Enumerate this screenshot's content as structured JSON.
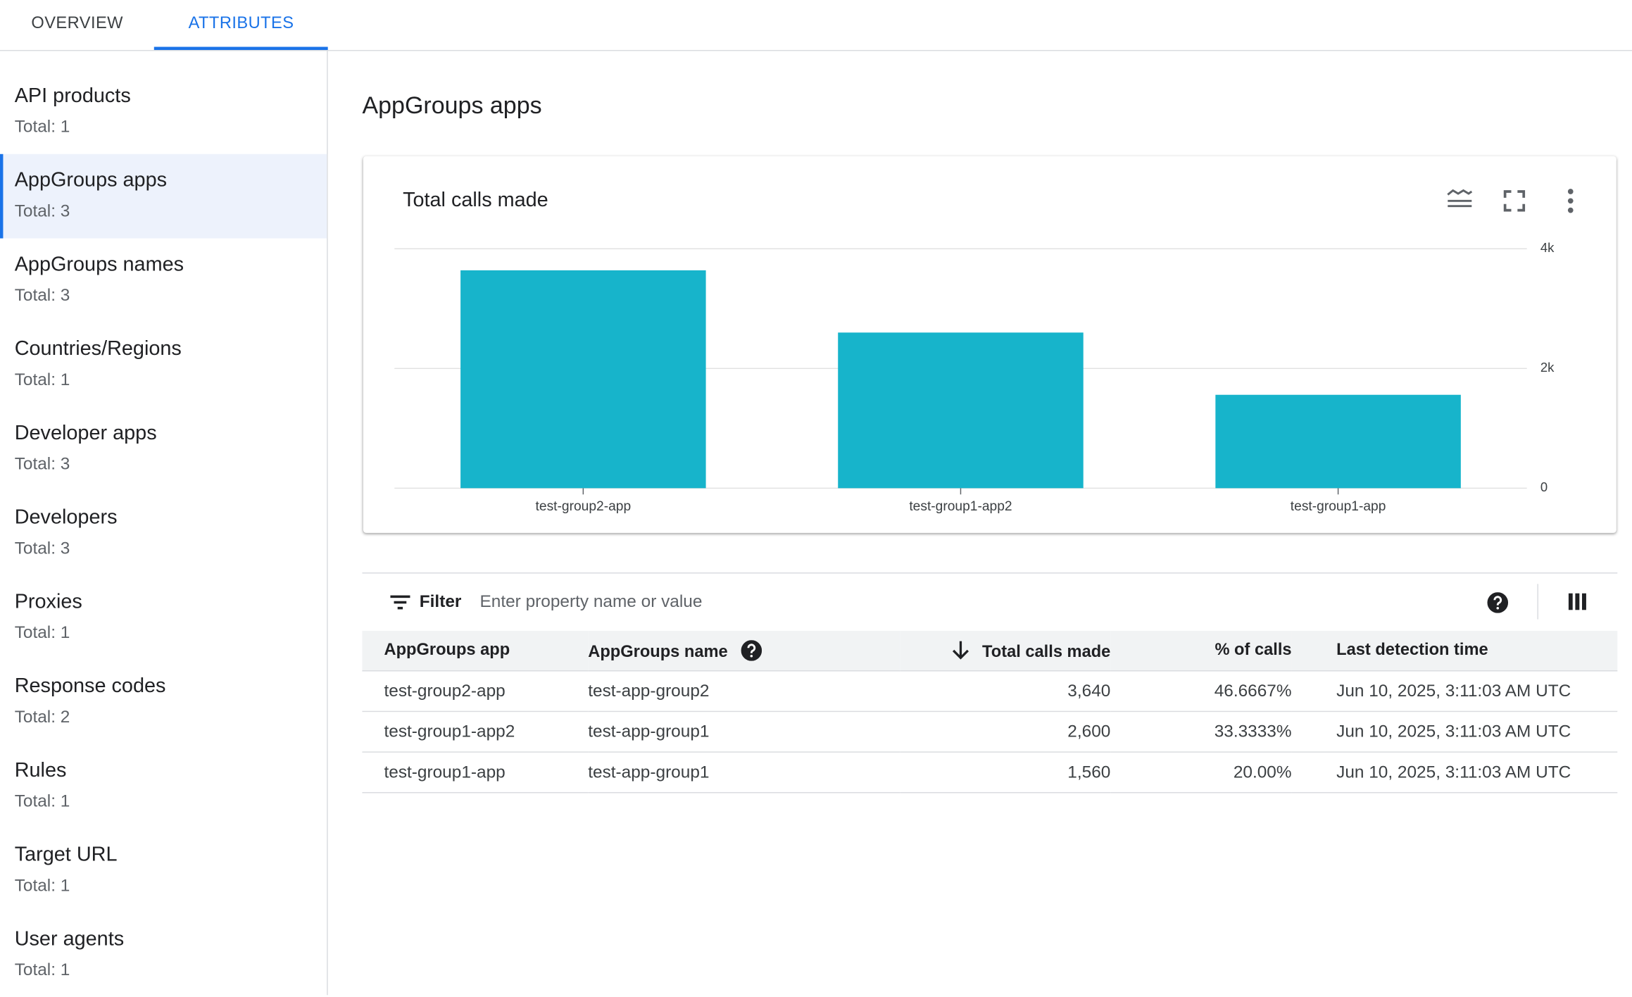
{
  "tabs": [
    "OVERVIEW",
    "ATTRIBUTES"
  ],
  "sidebar": [
    {
      "name": "API products",
      "total": "Total: 1"
    },
    {
      "name": "AppGroups apps",
      "total": "Total: 3"
    },
    {
      "name": "AppGroups names",
      "total": "Total: 3"
    },
    {
      "name": "Countries/Regions",
      "total": "Total: 1"
    },
    {
      "name": "Developer apps",
      "total": "Total: 3"
    },
    {
      "name": "Developers",
      "total": "Total: 3"
    },
    {
      "name": "Proxies",
      "total": "Total: 1"
    },
    {
      "name": "Response codes",
      "total": "Total: 2"
    },
    {
      "name": "Rules",
      "total": "Total: 1"
    },
    {
      "name": "Target URL",
      "total": "Total: 1"
    },
    {
      "name": "User agents",
      "total": "Total: 1"
    }
  ],
  "heading": "AppGroups apps",
  "chart_data": {
    "type": "bar",
    "title": "Total calls made",
    "categories": [
      "test-group2-app",
      "test-group1-app2",
      "test-group1-app"
    ],
    "values": [
      3640,
      2600,
      1560
    ],
    "color": "#17b4cb",
    "ylim": [
      0,
      4000
    ],
    "yticks": [
      0,
      {
        "value": 2000,
        "label": "2k"
      },
      {
        "value": 4000,
        "label": "4k"
      }
    ],
    "grid": true
  },
  "filter": {
    "label": "Filter",
    "placeholder": "Enter property name or value"
  },
  "table": {
    "headers": [
      "AppGroups app",
      "AppGroups name",
      "Total calls made",
      "% of calls",
      "Last detection time"
    ],
    "rows": [
      [
        "test-group2-app",
        "test-app-group2",
        "3,640",
        "46.6667%",
        "Jun 10, 2025, 3:11:03 AM UTC"
      ],
      [
        "test-group1-app2",
        "test-app-group1",
        "2,600",
        "33.3333%",
        "Jun 10, 2025, 3:11:03 AM UTC"
      ],
      [
        "test-group1-app",
        "test-app-group1",
        "1,560",
        "20.00%",
        "Jun 10, 2025, 3:11:03 AM UTC"
      ]
    ]
  }
}
